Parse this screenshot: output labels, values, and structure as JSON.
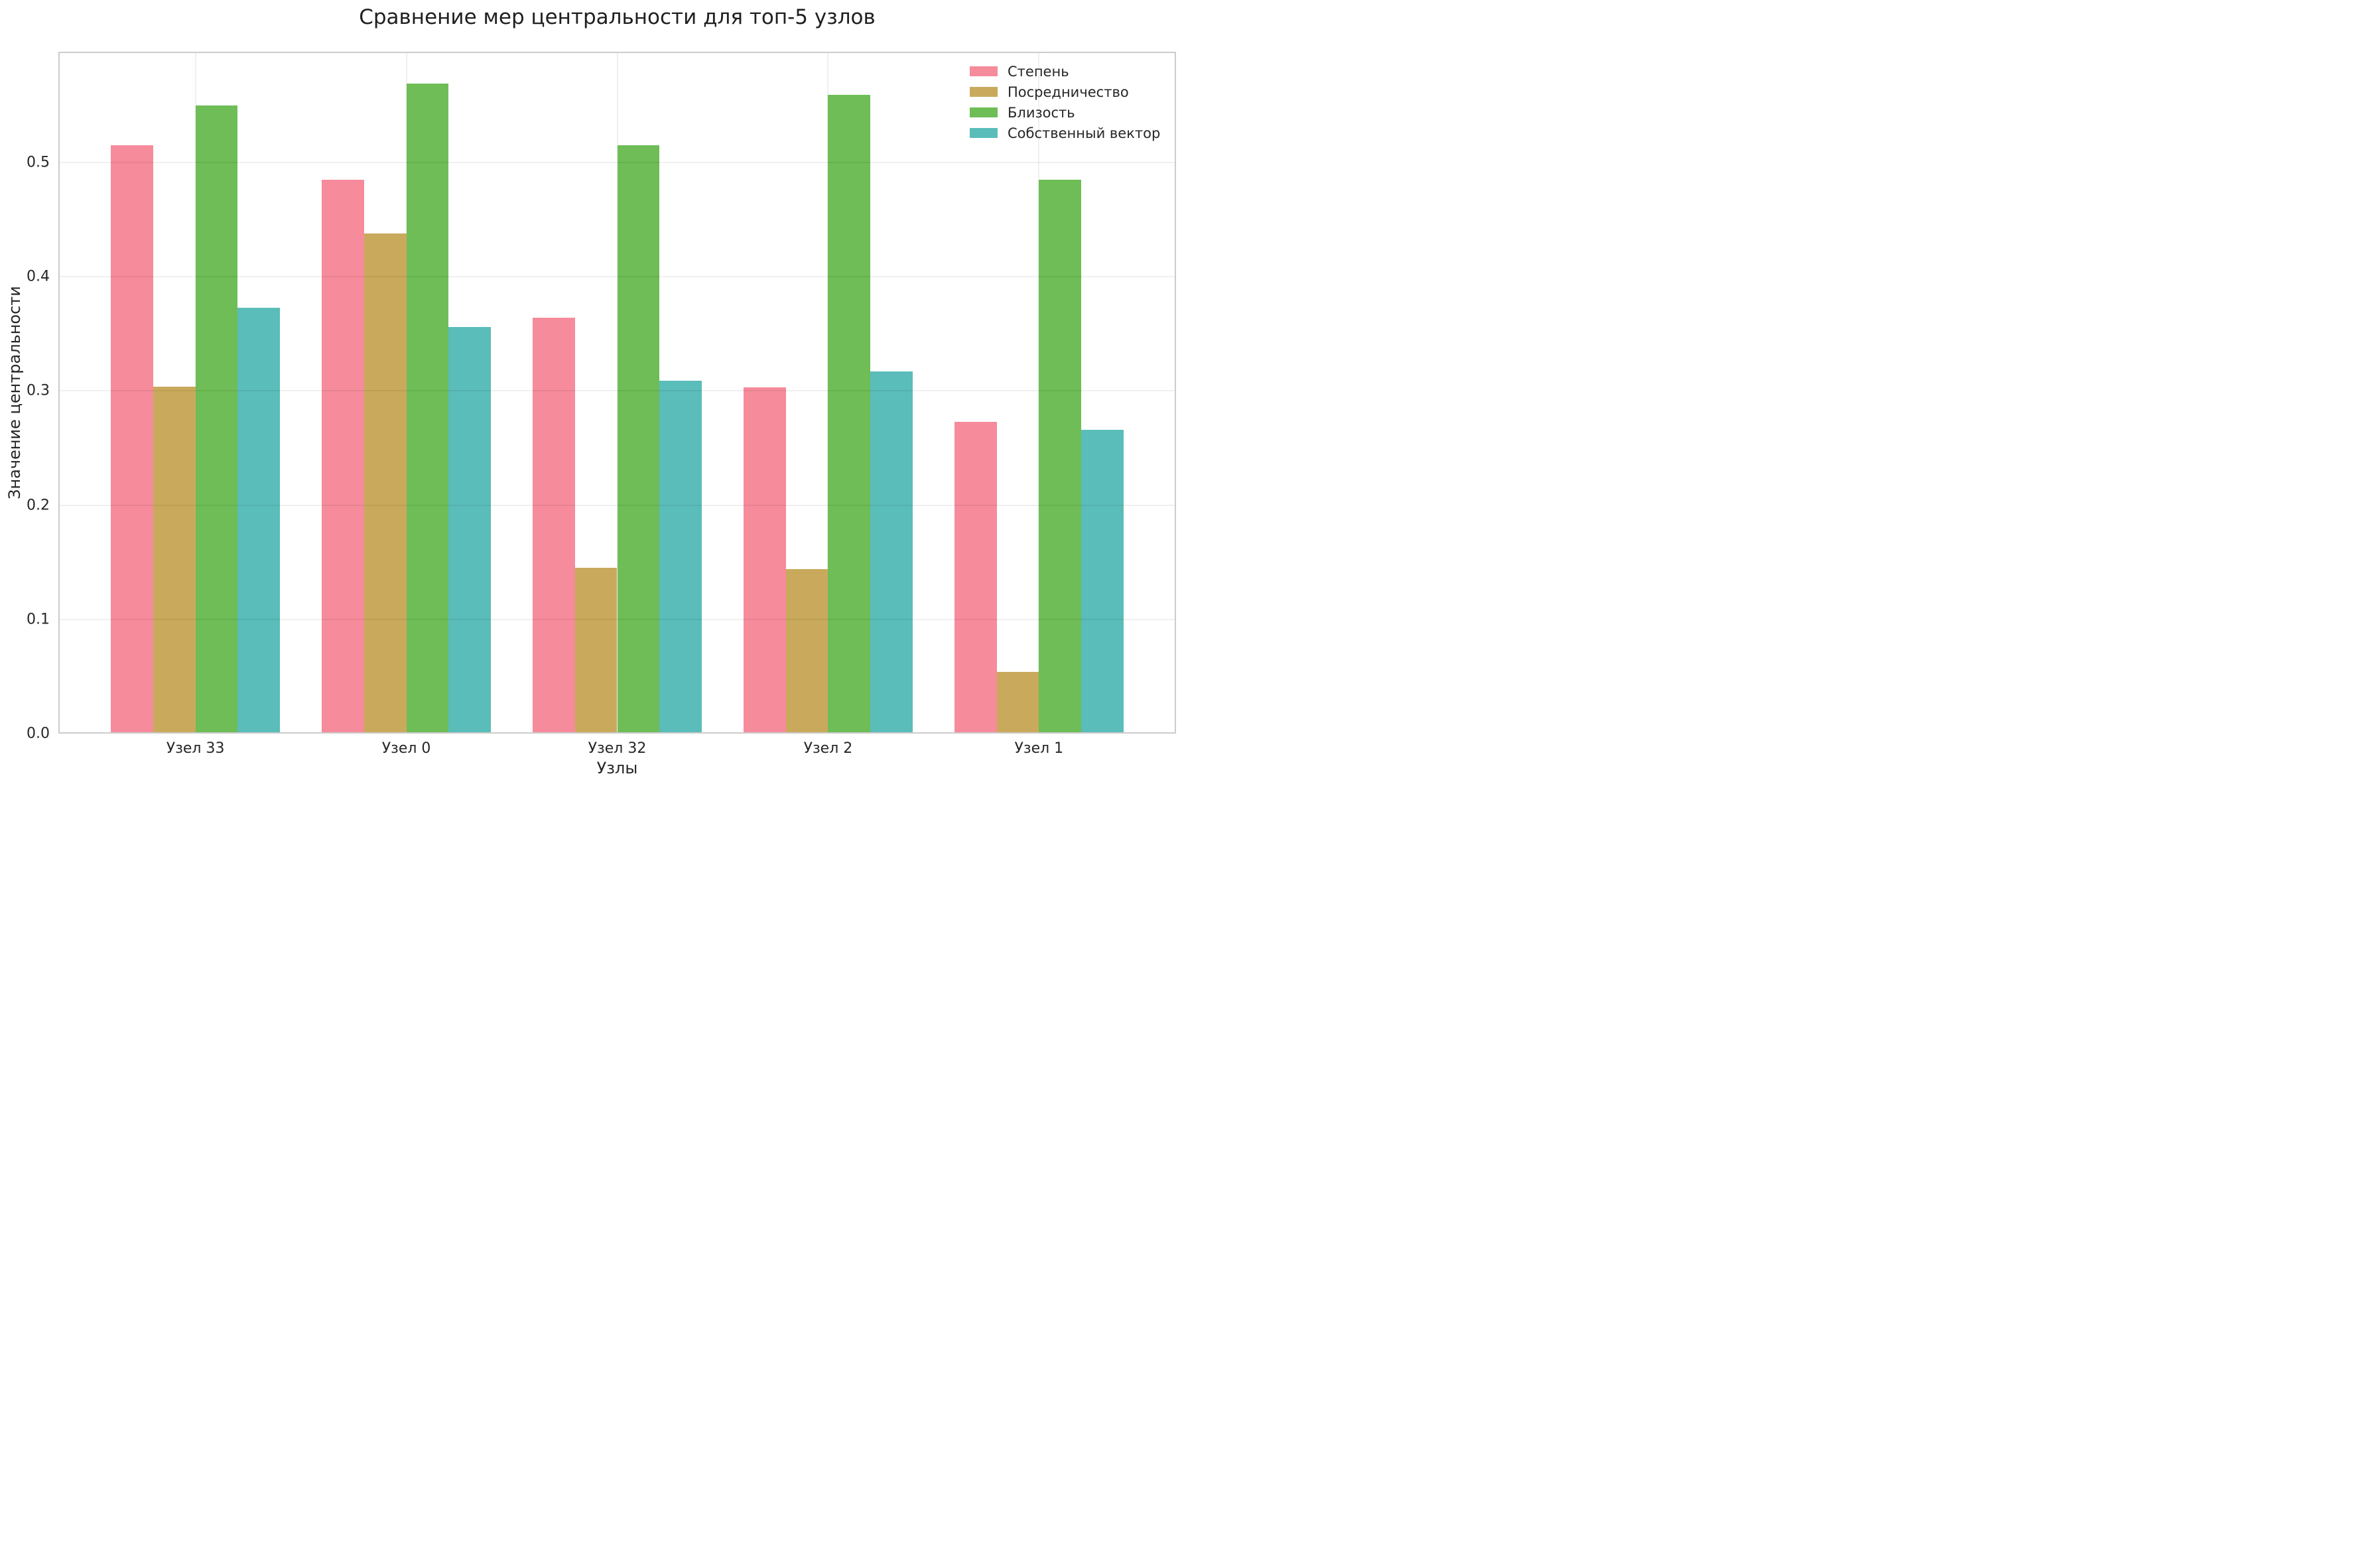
{
  "chart_data": {
    "type": "bar",
    "title": "Сравнение мер центральности для топ-5 узлов",
    "xlabel": "Узлы",
    "ylabel": "Значение центральности",
    "categories": [
      "Узел 33",
      "Узел 0",
      "Узел 32",
      "Узел 2",
      "Узел 1"
    ],
    "series": [
      {
        "name": "Степень",
        "color": "#F68B9B",
        "values": [
          0.515,
          0.485,
          0.364,
          0.303,
          0.273
        ]
      },
      {
        "name": "Посредничество",
        "color": "#C9AA5C",
        "values": [
          0.304,
          0.438,
          0.145,
          0.144,
          0.054
        ]
      },
      {
        "name": "Близость",
        "color": "#6EBD56",
        "values": [
          0.55,
          0.569,
          0.515,
          0.559,
          0.485
        ]
      },
      {
        "name": "Собственный вектор",
        "color": "#5ABDBA",
        "values": [
          0.373,
          0.356,
          0.309,
          0.317,
          0.266
        ]
      }
    ],
    "ylim": [
      0,
      0.597
    ],
    "yticks": [
      0.0,
      0.1,
      0.2,
      0.3,
      0.4,
      0.5
    ],
    "ytick_labels": [
      "0.0",
      "0.1",
      "0.2",
      "0.3",
      "0.4",
      "0.5"
    ],
    "bar_width": 0.2,
    "grid": true,
    "legend_position": "upper right"
  },
  "style": {
    "background": "#ffffff",
    "grid_color_over_bars": "rgba(0,0,0,0.06)",
    "grid_color_vertical": "#f0f0f0",
    "spine_color": "#cccccc",
    "text_color": "#262626",
    "title_color": "#1f1f1f"
  }
}
